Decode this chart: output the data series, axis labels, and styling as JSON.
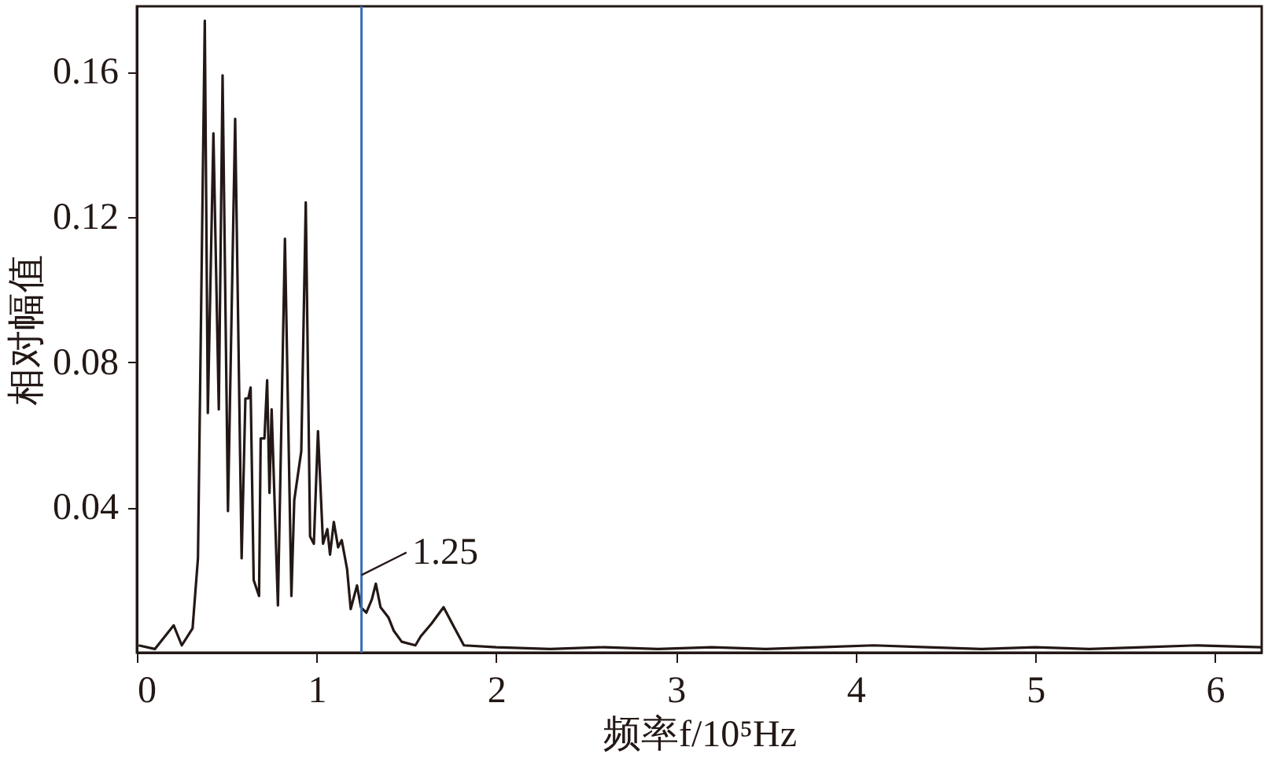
{
  "chart_data": {
    "type": "line",
    "xlabel": "频率f/10⁵Hz",
    "ylabel": "相对幅值",
    "x": [
      0.01,
      0.1,
      0.205,
      0.25,
      0.31,
      0.34,
      0.378,
      0.395,
      0.426,
      0.456,
      0.477,
      0.507,
      0.547,
      0.583,
      0.604,
      0.62,
      0.633,
      0.65,
      0.68,
      0.689,
      0.71,
      0.725,
      0.738,
      0.75,
      0.785,
      0.824,
      0.86,
      0.876,
      0.915,
      0.94,
      0.964,
      0.985,
      1.008,
      1.036,
      1.06,
      1.075,
      1.096,
      1.12,
      1.14,
      1.17,
      1.19,
      1.225,
      1.247,
      1.277,
      1.308,
      1.33,
      1.356,
      1.4,
      1.43,
      1.474,
      1.55,
      1.58,
      1.64,
      1.707,
      1.76,
      1.82,
      2.0,
      2.3,
      2.6,
      2.9,
      3.2,
      3.5,
      3.8,
      4.1,
      4.4,
      4.7,
      5.0,
      5.3,
      5.6,
      5.9,
      6.26
    ],
    "series": [
      {
        "color": "#231815",
        "values": [
          0.002,
          0.001,
          0.0075,
          0.002,
          0.0067,
          0.026,
          0.174,
          0.066,
          0.143,
          0.067,
          0.159,
          0.039,
          0.147,
          0.026,
          0.07,
          0.07,
          0.073,
          0.02,
          0.0156,
          0.059,
          0.059,
          0.075,
          0.044,
          0.067,
          0.013,
          0.114,
          0.0156,
          0.042,
          0.0555,
          0.124,
          0.032,
          0.03,
          0.061,
          0.03,
          0.034,
          0.027,
          0.036,
          0.029,
          0.031,
          0.023,
          0.012,
          0.0185,
          0.0125,
          0.011,
          0.0147,
          0.019,
          0.0125,
          0.0097,
          0.006,
          0.003,
          0.002,
          0.0045,
          0.008,
          0.0125,
          0.0075,
          0.002,
          0.0015,
          0.001,
          0.0015,
          0.001,
          0.0015,
          0.001,
          0.0015,
          0.002,
          0.0015,
          0.001,
          0.0015,
          0.001,
          0.0015,
          0.002,
          0.0015
        ]
      }
    ],
    "xlim": [
      0,
      6.26
    ],
    "ylim": [
      0,
      0.178
    ],
    "xticks": [
      0,
      1,
      2,
      3,
      4,
      5,
      6
    ],
    "yticks": [
      0.04,
      0.08,
      0.12,
      0.16
    ],
    "grid": false,
    "marker": "none",
    "line_style": "solid",
    "ref_lines": [
      {
        "axis": "x",
        "value": 1.25,
        "label": "1.25",
        "color": "#3b6fb6"
      }
    ]
  }
}
